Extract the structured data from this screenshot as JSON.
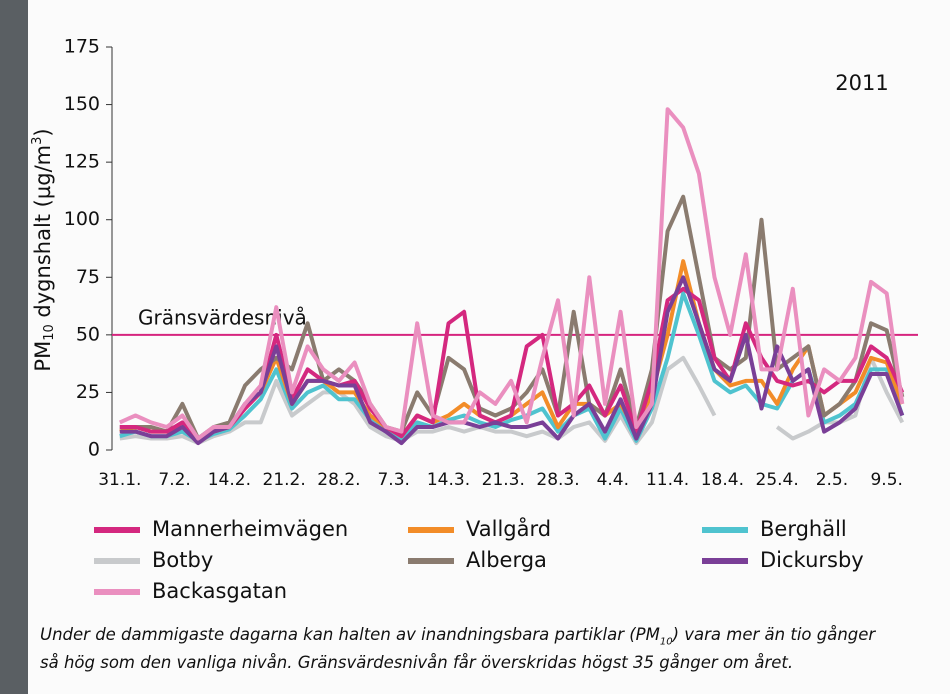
{
  "chart_data": {
    "type": "line",
    "annotation": "2011",
    "y_label": [
      "PM",
      "10",
      " dygnshalt (µg/m",
      "3",
      ")"
    ],
    "reference_line": {
      "label": "Gränsvärdesnivå",
      "value": 50,
      "color": "#d6247e"
    },
    "x": [
      0,
      2,
      4,
      6,
      8,
      10,
      12,
      14,
      16,
      18,
      20,
      22,
      24,
      26,
      28,
      30,
      32,
      34,
      36,
      38,
      40,
      42,
      44,
      46,
      48,
      50,
      52,
      54,
      56,
      58,
      60,
      62,
      64,
      66,
      68,
      70,
      72,
      74,
      76,
      78,
      80,
      82,
      84,
      86,
      88,
      90,
      92,
      94,
      96,
      98,
      100
    ],
    "xlim": [
      -1,
      102
    ],
    "xticks": [
      {
        "value": 0,
        "label": "31.1."
      },
      {
        "value": 7,
        "label": "7.2."
      },
      {
        "value": 14,
        "label": "14.2."
      },
      {
        "value": 21,
        "label": "21.2."
      },
      {
        "value": 28,
        "label": "28.2."
      },
      {
        "value": 35,
        "label": "7.3."
      },
      {
        "value": 42,
        "label": "14.3."
      },
      {
        "value": 49,
        "label": "21.3."
      },
      {
        "value": 56,
        "label": "28.3."
      },
      {
        "value": 63,
        "label": "4.4."
      },
      {
        "value": 70,
        "label": "11.4."
      },
      {
        "value": 77,
        "label": "18.4."
      },
      {
        "value": 84,
        "label": "25.4."
      },
      {
        "value": 91,
        "label": "2.5."
      },
      {
        "value": 98,
        "label": "9.5."
      }
    ],
    "ylim": [
      0,
      175
    ],
    "yticks": [
      0,
      25,
      50,
      75,
      100,
      125,
      150,
      175
    ],
    "series": [
      {
        "name": "Mannerheimvägen",
        "color": "#d4287f",
        "values": [
          10,
          10,
          8,
          8,
          12,
          5,
          8,
          10,
          18,
          25,
          50,
          22,
          35,
          30,
          28,
          30,
          18,
          10,
          6,
          15,
          12,
          55,
          60,
          15,
          12,
          15,
          45,
          50,
          15,
          20,
          28,
          15,
          28,
          8,
          30,
          65,
          70,
          65,
          40,
          30,
          55,
          40,
          30,
          28,
          30,
          25,
          30,
          30,
          45,
          40,
          25
        ]
      },
      {
        "name": "Vallgård",
        "color": "#f28c28",
        "values": [
          8,
          10,
          8,
          8,
          10,
          5,
          8,
          10,
          18,
          25,
          40,
          20,
          30,
          30,
          25,
          25,
          15,
          10,
          6,
          15,
          12,
          15,
          20,
          15,
          12,
          15,
          20,
          25,
          10,
          20,
          20,
          15,
          20,
          8,
          25,
          50,
          82,
          55,
          35,
          28,
          30,
          30,
          20,
          35,
          45,
          15,
          20,
          25,
          40,
          38,
          20
        ]
      },
      {
        "name": "Berghäll",
        "color": "#4fc3cf",
        "values": [
          6,
          8,
          6,
          6,
          8,
          4,
          7,
          9,
          15,
          22,
          35,
          18,
          25,
          28,
          22,
          22,
          13,
          8,
          5,
          12,
          10,
          13,
          15,
          12,
          10,
          13,
          15,
          18,
          8,
          15,
          18,
          5,
          18,
          4,
          18,
          40,
          68,
          50,
          30,
          25,
          28,
          20,
          18,
          30,
          35,
          12,
          15,
          20,
          35,
          35,
          15
        ]
      },
      {
        "name": "Botby",
        "color": "#c8cacc",
        "values": [
          5,
          6,
          5,
          5,
          6,
          3,
          6,
          8,
          12,
          12,
          30,
          15,
          20,
          25,
          25,
          20,
          10,
          6,
          4,
          8,
          8,
          10,
          8,
          10,
          8,
          8,
          6,
          8,
          5,
          10,
          12,
          4,
          15,
          3,
          12,
          35,
          40,
          28,
          15,
          null,
          null,
          null,
          10,
          5,
          8,
          12,
          12,
          15,
          40,
          25,
          12
        ]
      },
      {
        "name": "Alberga",
        "color": "#8a7b6f",
        "values": [
          10,
          10,
          10,
          8,
          20,
          5,
          10,
          12,
          28,
          35,
          40,
          35,
          55,
          30,
          35,
          30,
          20,
          10,
          8,
          25,
          15,
          40,
          35,
          18,
          15,
          18,
          25,
          35,
          15,
          60,
          20,
          15,
          35,
          10,
          35,
          95,
          110,
          75,
          40,
          35,
          40,
          100,
          35,
          40,
          45,
          15,
          20,
          30,
          55,
          52,
          23
        ]
      },
      {
        "name": "Dickursby",
        "color": "#7a3f97",
        "values": [
          8,
          8,
          6,
          6,
          10,
          3,
          8,
          10,
          20,
          25,
          45,
          20,
          30,
          30,
          28,
          28,
          12,
          8,
          3,
          10,
          10,
          12,
          12,
          10,
          12,
          10,
          10,
          12,
          5,
          15,
          20,
          8,
          22,
          5,
          20,
          60,
          75,
          55,
          35,
          30,
          50,
          18,
          45,
          30,
          35,
          8,
          12,
          18,
          33,
          33,
          15
        ]
      },
      {
        "name": "Backasgatan",
        "color": "#ea8fbf",
        "values": [
          12,
          15,
          12,
          10,
          15,
          5,
          10,
          10,
          20,
          28,
          62,
          25,
          45,
          35,
          30,
          38,
          20,
          10,
          8,
          55,
          15,
          12,
          12,
          25,
          20,
          30,
          12,
          40,
          65,
          15,
          75,
          20,
          60,
          10,
          20,
          148,
          140,
          120,
          75,
          50,
          85,
          35,
          35,
          70,
          15,
          35,
          30,
          40,
          73,
          68,
          20
        ]
      }
    ]
  },
  "caption": {
    "line1": [
      "Under de dammigaste dagarna kan halten av inandningsbara partiklar (PM",
      "10",
      ") vara mer än tio gånger"
    ],
    "line2": "så hög som den vanliga nivån. Gränsvärdesnivån får överskridas högst 35 gånger om året."
  }
}
